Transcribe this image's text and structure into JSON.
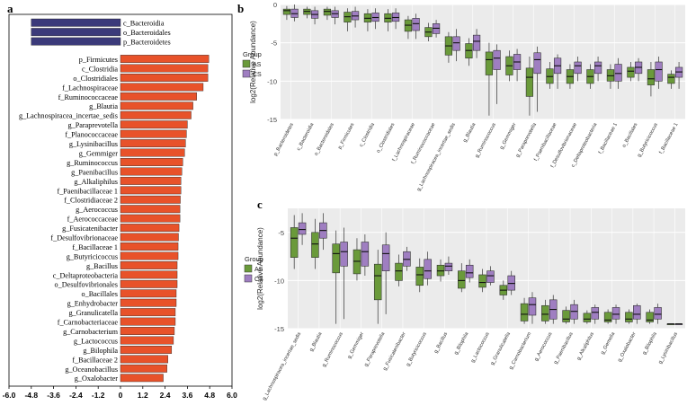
{
  "chart_data": [
    {
      "panel": "a",
      "type": "bar",
      "orientation": "horizontal",
      "xlim": [
        -6.0,
        6.0
      ],
      "xticks": [
        "-6.0",
        "-4.8",
        "-3.6",
        "-2.4",
        "-1.2",
        "0",
        "1.2",
        "2.4",
        "3.6",
        "4.8",
        "6.0"
      ],
      "colors": {
        "negative": "#3b3a7a",
        "positive": "#e8522a"
      },
      "categories": [
        "c_Bacteroidia",
        "o_Bacteroidales",
        "p_Bacteroidetes",
        "p_Firmicutes",
        "c_Clostridia",
        "o_Clostridiales",
        "f_Lachnospiraceae",
        "f_Ruminococcaceae",
        "g_Blautia",
        "g_Lachnospiracea_incertae_sedis",
        "g_Paraprevotella",
        "f_Planococcaceae",
        "g_Lysinibacillus",
        "g_Gemmiger",
        "g_Ruminococcus",
        "g_Paenibacillus",
        "g_Alkaliphilus",
        "f_Paenibacillaceae 1",
        "f_Clostridiaceae 2",
        "g_Aerococcus",
        "f_Aerococcaceae",
        "g_Fusicatenibacter",
        "f_Desulfovibrionaceae",
        "f_Bacillaceae 1",
        "g_Butyricicoccus",
        "g_Bacillus",
        "c_Deltaproteobacteria",
        "o_Desulfovibrionales",
        "o_Bacillales",
        "g_Enhydrobacter",
        "g_Granulicatella",
        "f_Carnobacteriaceae",
        "g_Carnobacterium",
        "g_Lactococcus",
        "g_Bilophila",
        "f_Bacillaceae 2",
        "g_Oceanobacillus",
        "g_Oxalobacter"
      ],
      "values": [
        -4.8,
        -4.8,
        -4.8,
        4.75,
        4.7,
        4.7,
        4.45,
        4.1,
        3.9,
        3.8,
        3.6,
        3.55,
        3.5,
        3.45,
        3.35,
        3.3,
        3.25,
        3.25,
        3.22,
        3.2,
        3.2,
        3.15,
        3.12,
        3.1,
        3.1,
        3.05,
        3.05,
        3.05,
        3.0,
        3.0,
        2.95,
        2.95,
        2.9,
        2.85,
        2.75,
        2.55,
        2.5,
        2.3
      ]
    },
    {
      "panel": "b",
      "type": "box",
      "ylabel": "log2(Relative Abundance)",
      "ylim": [
        -15,
        0
      ],
      "yticks": [
        0,
        -5,
        -10,
        -15
      ],
      "legend": {
        "title": "Group",
        "entries": [
          "AS",
          "CS"
        ],
        "position": "left"
      },
      "colors": {
        "AS": "#6a9a3a",
        "CS": "#9f7ec1"
      },
      "categories": [
        "p_Bacteroidetes",
        "c_Bacteroidia",
        "o_Bacteroidales",
        "p_Firmicutes",
        "c_Clostridia",
        "o_Clostridiales",
        "f_Lachnospiraceae",
        "f_Ruminococcaceae",
        "g_Lachnospiracea_incertae_sedis",
        "g_Blautia",
        "g_Ruminococcus",
        "g_Gemmiger",
        "g_Paraprevotella",
        "f_Paenibacillaceae",
        "f_Desulfovibrionaceae",
        "c_Deltaproteobacteria",
        "f_Bacillaceae 1",
        "o_Bacillales",
        "g_Butyricicoccus",
        "f_Bacillaceae 1"
      ],
      "series": [
        {
          "name": "AS",
          "boxes": [
            [
              -2,
              -1.3,
              -0.8,
              -0.6,
              -0.2
            ],
            [
              -1.8,
              -1.3,
              -0.9,
              -0.6,
              -0.3
            ],
            [
              -2,
              -1.4,
              -0.9,
              -0.6,
              -0.3
            ],
            [
              -3.5,
              -2.3,
              -1.6,
              -1,
              -0.5
            ],
            [
              -3.5,
              -2.3,
              -1.8,
              -1.2,
              -0.6
            ],
            [
              -3.5,
              -2.3,
              -1.8,
              -1.2,
              -0.6
            ],
            [
              -4.5,
              -3.5,
              -2.7,
              -2,
              -1.5
            ],
            [
              -4.8,
              -4.2,
              -3.6,
              -3,
              -2.4
            ],
            [
              -7.6,
              -6.6,
              -5.4,
              -4.2,
              -3.6
            ],
            [
              -8,
              -7,
              -6,
              -5.1,
              -4.4
            ],
            [
              -14.5,
              -9.2,
              -7.2,
              -6.2,
              -5
            ],
            [
              -10,
              -9.2,
              -8,
              -6.8,
              -6
            ],
            [
              -14.5,
              -12,
              -9.5,
              -8.3,
              -6.8
            ],
            [
              -11,
              -10.3,
              -9.4,
              -8.4,
              -7.5
            ],
            [
              -11,
              -10.3,
              -9.4,
              -8.5,
              -7.8
            ],
            [
              -11,
              -10.3,
              -9.4,
              -8.5,
              -7.8
            ],
            [
              -11,
              -10,
              -9.3,
              -8.5,
              -7.8
            ],
            [
              -10,
              -9.5,
              -8.7,
              -8.2,
              -7.5
            ],
            [
              -12,
              -10.5,
              -9.7,
              -8.5,
              -7.5
            ],
            [
              -11,
              -10.3,
              -9.5,
              -9.1,
              -8.6
            ]
          ]
        },
        {
          "name": "CS",
          "boxes": [
            [
              -2.2,
              -1.7,
              -1.2,
              -0.6,
              0
            ],
            [
              -2.6,
              -1.8,
              -1.3,
              -0.8,
              -0.3
            ],
            [
              -2.6,
              -1.7,
              -1.2,
              -0.8,
              -0.3
            ],
            [
              -3,
              -2,
              -1.5,
              -0.9,
              -0.3
            ],
            [
              -3.2,
              -2.2,
              -1.7,
              -1.1,
              -0.5
            ],
            [
              -3.2,
              -2.2,
              -1.7,
              -1.1,
              -0.5
            ],
            [
              -4.5,
              -3.4,
              -2.5,
              -1.8,
              -1.2
            ],
            [
              -4.3,
              -3.8,
              -3.1,
              -2.5,
              -2
            ],
            [
              -7.4,
              -6,
              -5,
              -4.2,
              -3.2
            ],
            [
              -7,
              -6,
              -4.8,
              -4,
              -3.2
            ],
            [
              -13,
              -8.5,
              -7,
              -6,
              -5.2
            ],
            [
              -10,
              -8.5,
              -7.5,
              -6.5,
              -5.8
            ],
            [
              -14,
              -9,
              -7.2,
              -6.3,
              -5.5
            ],
            [
              -11,
              -9,
              -8,
              -7,
              -6.5
            ],
            [
              -10,
              -9,
              -8,
              -7.5,
              -6.8
            ],
            [
              -10,
              -9,
              -8,
              -7.5,
              -6.8
            ],
            [
              -11,
              -10,
              -9,
              -7.8,
              -7
            ],
            [
              -10,
              -9,
              -8.2,
              -7.5,
              -7
            ],
            [
              -11,
              -10,
              -8.5,
              -7.5,
              -6.8
            ],
            [
              -11,
              -9.5,
              -8.8,
              -8.2,
              -7.5
            ]
          ]
        }
      ]
    },
    {
      "panel": "c",
      "type": "box",
      "ylabel": "log2(Relative Abundance)",
      "ylim": [
        -15,
        -2.5
      ],
      "yticks": [
        -5,
        -10,
        -15
      ],
      "legend": {
        "title": "Group",
        "entries": [
          "AS",
          "CS"
        ],
        "position": "left"
      },
      "colors": {
        "AS": "#6a9a3a",
        "CS": "#9f7ec1"
      },
      "categories": [
        "g_Lachnospiracea_incertae_sedis",
        "g_Blautia",
        "g_Ruminococcus",
        "g_Gemmiger",
        "g_Paraprevotella",
        "g_Fusicatenibacter",
        "g_Butyricicoccus",
        "g_Bacillus",
        "g_Bilophila",
        "g_Lactococcus",
        "g_Granulicatella",
        "g_Carnobacterium",
        "g_Aerococcus",
        "g_Paenibacillus",
        "g_Alkaliphilus",
        "g_Gemella",
        "g_Oxalobacter",
        "g_Bilophila",
        "g_Lysinibacillus"
      ],
      "series": [
        {
          "name": "AS",
          "boxes": [
            [
              -8.8,
              -7.6,
              -5.6,
              -4.5,
              -3.2
            ],
            [
              -8.8,
              -7.6,
              -6.2,
              -5,
              -3.6
            ],
            [
              -14.5,
              -9.2,
              -7.2,
              -6.2,
              -4.8
            ],
            [
              -10,
              -9.3,
              -8,
              -6.8,
              -5.6
            ],
            [
              -14.5,
              -12,
              -9.5,
              -8.3,
              -6.8
            ],
            [
              -10.6,
              -10,
              -9,
              -8.2,
              -7.3
            ],
            [
              -11.2,
              -10.5,
              -9.4,
              -8.6,
              -7.7
            ],
            [
              -10.1,
              -9.5,
              -9,
              -8.4,
              -7.8
            ],
            [
              -11.2,
              -10.8,
              -10,
              -9,
              -8.2
            ],
            [
              -11.2,
              -10.7,
              -10.2,
              -9.4,
              -8.8
            ],
            [
              -12,
              -11.5,
              -11,
              -10.5,
              -10
            ],
            [
              -14.5,
              -14.2,
              -13.5,
              -12.4,
              -11.8
            ],
            [
              -14.5,
              -14.2,
              -13.5,
              -12.6,
              -12
            ],
            [
              -14.5,
              -14.3,
              -14,
              -13.1,
              -12.7
            ],
            [
              -14.5,
              -14.3,
              -14,
              -13.4,
              -13.1
            ],
            [
              -14.5,
              -14.3,
              -14.1,
              -13.3,
              -13
            ],
            [
              -14.5,
              -14.3,
              -14,
              -13.3,
              -13
            ],
            [
              -14.5,
              -14.3,
              -14.1,
              -13.3,
              -13
            ],
            [
              -14.5,
              -14.5,
              -14.5,
              -14.5,
              -14.5
            ]
          ]
        },
        {
          "name": "CS",
          "boxes": [
            [
              -6.3,
              -5.2,
              -4.7,
              -4,
              -3
            ],
            [
              -6.8,
              -5.6,
              -4.8,
              -4,
              -3
            ],
            [
              -14,
              -8.5,
              -7,
              -6,
              -4.5
            ],
            [
              -9.5,
              -8.5,
              -7,
              -6,
              -5.2
            ],
            [
              -13.5,
              -9,
              -7.2,
              -6.3,
              -5
            ],
            [
              -9,
              -8.5,
              -7.8,
              -7,
              -6.5
            ],
            [
              -10.5,
              -9.8,
              -9,
              -7.8,
              -7
            ],
            [
              -9.4,
              -9,
              -8.5,
              -8.2,
              -7.5
            ],
            [
              -10.2,
              -9.7,
              -9.2,
              -8.4,
              -7.8
            ],
            [
              -10.5,
              -10.2,
              -9.5,
              -9,
              -8.5
            ],
            [
              -11.5,
              -11,
              -10.3,
              -9.5,
              -9
            ],
            [
              -14.5,
              -13.6,
              -12.5,
              -11.8,
              -11.2
            ],
            [
              -14.5,
              -14,
              -13,
              -12,
              -11.5
            ],
            [
              -14.5,
              -14,
              -13.2,
              -12.5,
              -12
            ],
            [
              -14.5,
              -14,
              -13.3,
              -12.8,
              -12.5
            ],
            [
              -14.5,
              -14,
              -13.5,
              -12.8,
              -12.5
            ],
            [
              -14.5,
              -14,
              -13.5,
              -12.6,
              -12.4
            ],
            [
              -14.5,
              -14,
              -13.5,
              -12.8,
              -12.4
            ],
            [
              -14.5,
              -14.5,
              -14.5,
              -14.5,
              -14.5
            ]
          ]
        }
      ]
    }
  ]
}
